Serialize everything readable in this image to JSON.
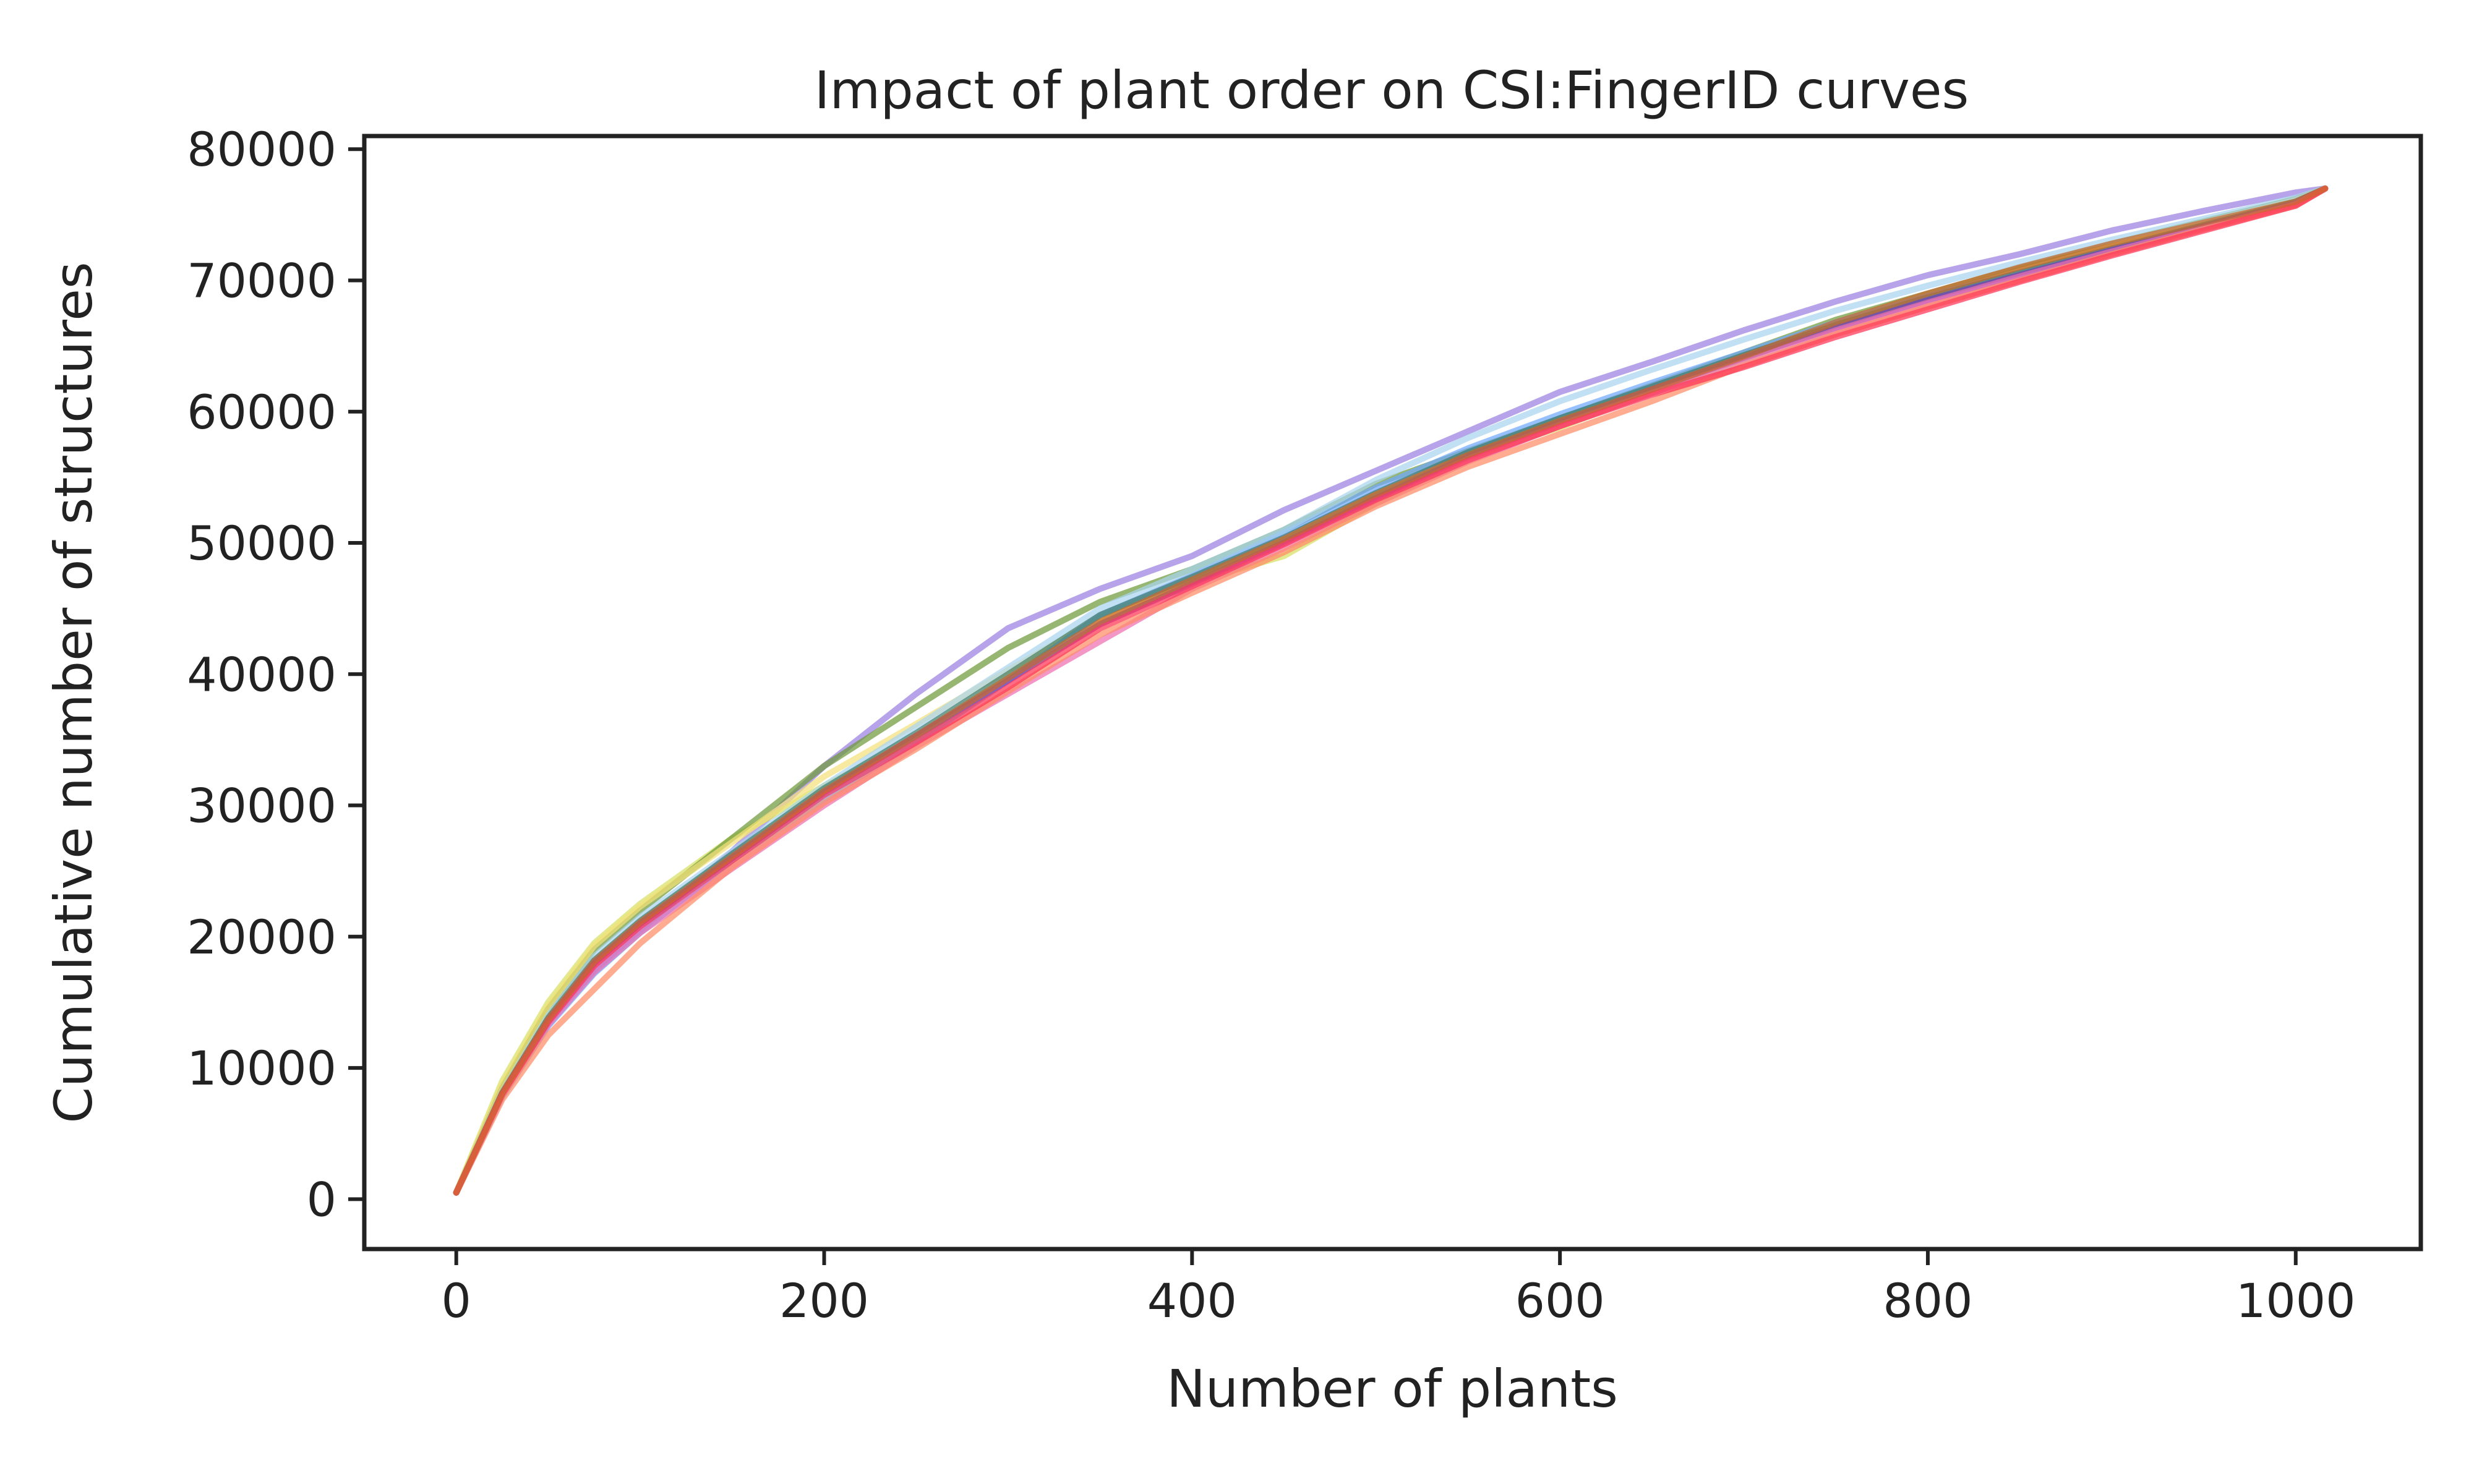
{
  "chart_data": {
    "type": "line",
    "title": "Impact of plant order on CSI:FingerID curves",
    "xlabel": "Number of plants",
    "ylabel": "Cumulative number of structures",
    "xlim": [
      -50,
      1068
    ],
    "ylim": [
      -3800,
      81000
    ],
    "x_ticks": [
      0,
      200,
      400,
      600,
      800,
      1000
    ],
    "y_ticks": [
      0,
      10000,
      20000,
      30000,
      40000,
      50000,
      60000,
      70000,
      80000
    ],
    "x_tick_labels": [
      "0",
      "200",
      "400",
      "600",
      "800",
      "1000"
    ],
    "y_tick_labels": [
      "0",
      "10000",
      "20000",
      "30000",
      "40000",
      "50000",
      "60000",
      "70000",
      "80000"
    ],
    "grid": false,
    "legend": "none",
    "x": [
      0,
      25,
      50,
      75,
      100,
      150,
      200,
      250,
      300,
      350,
      400,
      450,
      500,
      550,
      600,
      650,
      700,
      750,
      800,
      850,
      900,
      950,
      1000,
      1016
    ],
    "series": [
      {
        "color": "#9b7fe0",
        "values": [
          500,
          8000,
          13500,
          17500,
          20500,
          26500,
          33000,
          38500,
          43500,
          46500,
          49000,
          52500,
          55500,
          58500,
          61500,
          63800,
          66200,
          68400,
          70400,
          72000,
          73800,
          75300,
          76700,
          77000
        ]
      },
      {
        "color": "#d7e062",
        "values": [
          500,
          9000,
          15000,
          19500,
          22500,
          27500,
          31500,
          35000,
          39500,
          44000,
          47000,
          49000,
          53000,
          56500,
          58800,
          61500,
          64000,
          66600,
          68800,
          70800,
          72800,
          74500,
          76200,
          77000
        ]
      },
      {
        "color": "#6e9a3a",
        "values": [
          500,
          8500,
          14500,
          19000,
          22000,
          27500,
          33000,
          37500,
          42000,
          45500,
          48000,
          51000,
          54500,
          57000,
          59500,
          62000,
          64500,
          67000,
          69000,
          71000,
          72800,
          74500,
          76200,
          77000
        ]
      },
      {
        "color": "#f4e07a",
        "values": [
          500,
          8700,
          14700,
          19300,
          22300,
          27200,
          32200,
          36200,
          40300,
          44300,
          47300,
          50200,
          53600,
          56600,
          59100,
          61600,
          64100,
          66500,
          68700,
          70700,
          72600,
          74400,
          76100,
          77000
        ]
      },
      {
        "color": "#6fa8ff",
        "values": [
          500,
          7800,
          13200,
          17200,
          20300,
          25800,
          30500,
          34800,
          39500,
          44500,
          47500,
          50800,
          54200,
          57200,
          59800,
          62200,
          64500,
          66800,
          68800,
          70600,
          72400,
          74200,
          76000,
          77000
        ]
      },
      {
        "color": "#a9d4ef",
        "values": [
          500,
          8200,
          14000,
          18500,
          21500,
          26500,
          31500,
          36000,
          40500,
          45000,
          48000,
          51000,
          54800,
          58000,
          60800,
          63200,
          65500,
          67700,
          69600,
          71400,
          73100,
          74700,
          76300,
          77000
        ]
      },
      {
        "color": "#3f7c6b",
        "values": [
          500,
          8100,
          13800,
          18200,
          21200,
          26300,
          31300,
          35500,
          40000,
          44500,
          47400,
          50400,
          53800,
          56900,
          59500,
          61900,
          64300,
          66600,
          68700,
          70600,
          72400,
          74200,
          76000,
          77000
        ]
      },
      {
        "color": "#7b3fb5",
        "values": [
          500,
          8000,
          13600,
          18000,
          21000,
          26000,
          31000,
          35300,
          39500,
          43800,
          46900,
          50000,
          53400,
          56600,
          59200,
          61700,
          64100,
          66400,
          68500,
          70400,
          72300,
          74100,
          75900,
          77000
        ]
      },
      {
        "color": "#ee6fb0",
        "values": [
          500,
          7900,
          13300,
          17300,
          20300,
          25200,
          30000,
          34500,
          38500,
          42500,
          46500,
          49600,
          53000,
          56200,
          58900,
          61400,
          63800,
          66200,
          68300,
          70300,
          72200,
          74000,
          75800,
          77000
        ]
      },
      {
        "color": "#ff8c66",
        "values": [
          500,
          7600,
          12500,
          16000,
          19500,
          25300,
          30200,
          34300,
          38700,
          43000,
          46200,
          49300,
          52800,
          55800,
          58300,
          60800,
          63500,
          65900,
          68000,
          70000,
          72000,
          73900,
          75700,
          77000
        ]
      },
      {
        "color": "#ff3355",
        "values": [
          500,
          8000,
          13500,
          17800,
          20800,
          25800,
          30800,
          34800,
          39000,
          43500,
          46700,
          49900,
          53300,
          56300,
          58900,
          61300,
          63400,
          65700,
          67800,
          69900,
          71900,
          73800,
          75700,
          77000
        ]
      },
      {
        "color": "#c9682e",
        "values": [
          500,
          8100,
          13700,
          18100,
          21100,
          26100,
          31100,
          35300,
          39700,
          44000,
          47200,
          50300,
          53700,
          56700,
          59300,
          61700,
          64200,
          66800,
          69000,
          71000,
          72800,
          74400,
          76000,
          77000
        ]
      }
    ]
  }
}
